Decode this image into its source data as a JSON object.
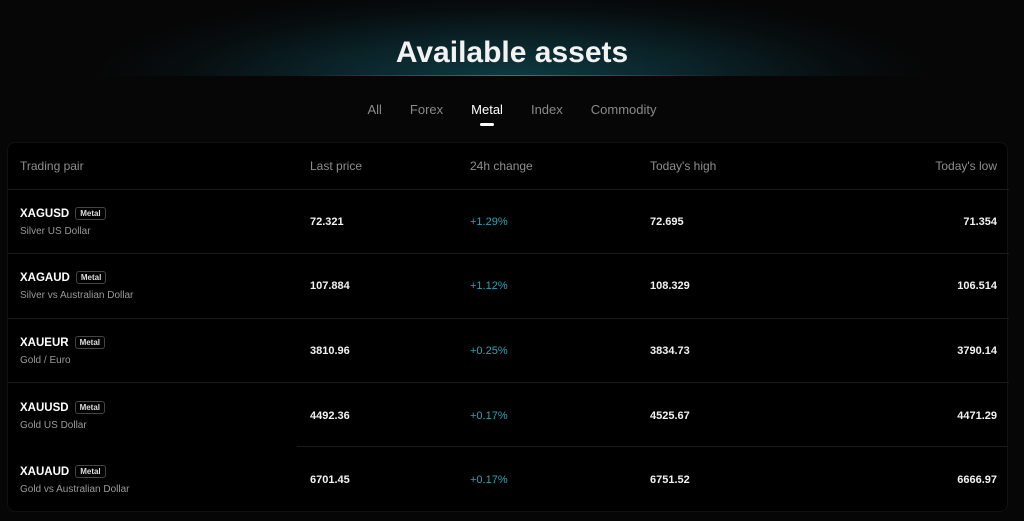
{
  "title": "Available assets",
  "tabs": [
    {
      "label": "All"
    },
    {
      "label": "Forex"
    },
    {
      "label": "Metal",
      "active": true
    },
    {
      "label": "Index"
    },
    {
      "label": "Commodity"
    }
  ],
  "table": {
    "headers": [
      "Trading pair",
      "Last price",
      "24h change",
      "Today's high",
      "Today's low"
    ],
    "rows": [
      {
        "symbol": "XAGUSD",
        "badge": "Metal",
        "name": "Silver US Dollar",
        "last": "72.321",
        "change": "+1.29%",
        "high": "72.695",
        "low": "71.354"
      },
      {
        "symbol": "XAGAUD",
        "badge": "Metal",
        "name": "Silver vs Australian Dollar",
        "last": "107.884",
        "change": "+1.12%",
        "high": "108.329",
        "low": "106.514"
      },
      {
        "symbol": "XAUEUR",
        "badge": "Metal",
        "name": "Gold / Euro",
        "last": "3810.96",
        "change": "+0.25%",
        "high": "3834.73",
        "low": "3790.14"
      },
      {
        "symbol": "XAUUSD",
        "badge": "Metal",
        "name": "Gold US Dollar",
        "last": "4492.36",
        "change": "+0.17%",
        "high": "4525.67",
        "low": "4471.29"
      },
      {
        "symbol": "XAUAUD",
        "badge": "Metal",
        "name": "Gold vs Australian Dollar",
        "last": "6701.45",
        "change": "+0.17%",
        "high": "6751.52",
        "low": "6666.97"
      }
    ]
  },
  "colors": {
    "positive": "#2aa3b8",
    "accent_glow": "#0f3a42"
  }
}
